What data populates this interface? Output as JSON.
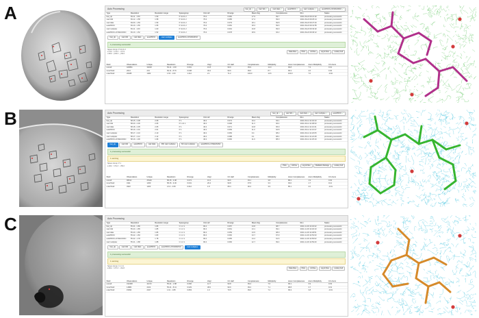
{
  "panels": [
    {
      "letter": "A",
      "title": "Auto Processing",
      "chips": [
        {
          "label": "fast_dp",
          "status": "ok"
        },
        {
          "label": "xia2 3dii",
          "status": "ok"
        },
        {
          "label": "xia2 dials",
          "status": "ok"
        },
        {
          "label": "autoPROC",
          "status": "ok"
        },
        {
          "label": "xia2 multiplex",
          "status": "ok"
        },
        {
          "label": "autoPROC+STARANISO",
          "status": "ok"
        }
      ],
      "table_header": [
        "Type",
        "Resolution",
        "Resolution range",
        "Spacegroup",
        "Unit cell",
        "Rmerge",
        "Mean I/sig",
        "Completeness",
        "Run",
        "Status"
      ],
      "table_rows": [
        [
          "fast_dp",
          "69.11 - 1.59",
          "1.59",
          "P 41 21 2",
          "79.3",
          "0.082",
          "17.9",
          "99.7",
          "2021-09-22 09:21:02",
          "processing successful"
        ],
        [
          "xia2 3dii",
          "69.12 - 1.58",
          "1.58",
          "P 41 21 2",
          "79.3",
          "0.085",
          "17.4",
          "99.9",
          "2021-09-22 09:25:14",
          "processing successful"
        ],
        [
          "xia2 dials",
          "69.09 - 1.59",
          "1.59",
          "P 41 21 2",
          "79.3",
          "0.079",
          "18.1",
          "99.8",
          "2021-09-22 09:27:40",
          "processing successful"
        ],
        [
          "autoPROC",
          "69.10 - 1.55",
          "1.55",
          "P 41 21 2",
          "79.3",
          "0.081",
          "18.3",
          "99.6",
          "2021-09-22 09:31:55",
          "processing successful"
        ],
        [
          "xia2 multiplex",
          "69.11 - 1.60",
          "1.60",
          "P 41 21 2",
          "79.3",
          "0.091",
          "16.8",
          "99.9",
          "2021-09-22 09:33:02",
          "processing successful"
        ],
        [
          "autoPROC+STARANISO",
          "69.10 - 1.52",
          "1.52",
          "P 41 21 2",
          "79.3",
          "0.078",
          "18.9",
          "94.2",
          "2021-09-22 09:36:12",
          "processing successful"
        ]
      ],
      "tabs": [
        "fast_dp",
        "xia2 3dii",
        "xia2 dials",
        "autoPROC",
        "xia2 multiplex",
        "autoPROC+STARANISO"
      ],
      "active_tab": 4,
      "success_text": "1 processing successful",
      "buttons": [
        "Data Files",
        "Plots",
        "Archive",
        "Log & Files",
        "Lookup Cell"
      ],
      "stats_header": [
        "Shell",
        "Observations",
        "Unique",
        "Resolution",
        "Rmerge",
        "I/sigI",
        "CC Half",
        "Completeness",
        "Multiplicity",
        "Anom Completeness",
        "Anom Multiplicity",
        "CC Anom"
      ],
      "stats_rows": [
        [
          "overall",
          "423891",
          "30218",
          "69.11 - 1.60",
          "0.091",
          "16.8",
          "99.9",
          "99.9",
          "14.0",
          "99.8",
          "7.3",
          "0.01"
        ],
        [
          "innerShell",
          "2014",
          "231",
          "69.11 - 8.76",
          "0.038",
          "49.2",
          "99.9",
          "99.6",
          "8.7",
          "99.3",
          "4.6",
          "0.40"
        ],
        [
          "outerShell",
          "20188",
          "1482",
          "1.63 - 1.60",
          "1.212",
          "2.1",
          "71.2",
          "100.0",
          "13.6",
          "100.0",
          "7.0",
          "-0.02"
        ]
      ]
    },
    {
      "letter": "B",
      "title": "Auto Processing",
      "chips": [
        {
          "label": "fast_dp",
          "status": "ok"
        },
        {
          "label": "xia2 3dii",
          "status": "ok"
        },
        {
          "label": "xia2 dials",
          "status": "ok"
        },
        {
          "label": "xia2 multiplex",
          "status": "ok"
        },
        {
          "label": "autoPROC",
          "status": "ok"
        }
      ],
      "table_header": [
        "Type",
        "Resolution",
        "Resolution range",
        "Spacegroup",
        "Unit cell",
        "Rmerge",
        "Mean I/sig",
        "Completeness",
        "Run",
        "Status"
      ],
      "table_rows": [
        [
          "fast_dp",
          "58.15 - 2.08",
          "2.08",
          "P 1",
          "46.2",
          "0.074",
          "10.2",
          "93.1",
          "2021-06-14 11:02:10",
          "processing successful"
        ],
        [
          "xia2 3dii",
          "58.20 - 2.06",
          "2.06",
          "P 1 21 1",
          "46.2",
          "0.068",
          "11.3",
          "96.4",
          "2021-06-14 11:08:33",
          "processing successful"
        ],
        [
          "xia2 dials",
          "58.18 - 2.05",
          "2.05",
          "P 1",
          "46.2",
          "0.071",
          "10.8",
          "95.9",
          "2021-06-14 11:10:41",
          "processing successful"
        ],
        [
          "autoPROC",
          "58.19 - 2.01",
          "2.01",
          "P 1",
          "46.2",
          "0.069",
          "11.0",
          "94.8",
          "2021-06-14 11:16:27",
          "processing successful"
        ],
        [
          "xia2 multiplex",
          "58.17 - 2.10",
          "2.10",
          "P 1",
          "46.2",
          "0.083",
          "9.4",
          "98.2",
          "2021-06-14 11:20:05",
          "processing successful"
        ],
        [
          "xia2 multiplex",
          "58.17 - 2.12",
          "2.12",
          "P 1",
          "46.2",
          "0.088",
          "9.1",
          "98.4",
          "2021-06-14 11:22:48",
          "processing successful"
        ],
        [
          "autoPROC+STARANISO",
          "58.19 - 1.96",
          "1.96",
          "P 1",
          "46.2",
          "0.066",
          "11.6",
          "88.0",
          "2021-06-14 11:25:19",
          "processing successful"
        ]
      ],
      "tabs": [
        "fast_dp",
        "xia2 3dii",
        "autoPROC",
        "xia2 dials",
        "fifth xia2 multiplex",
        "6th xia2 multiplex",
        "autoPROC+STARANISO"
      ],
      "active_tab": 0,
      "success_text": "1 processing successful",
      "warning_text": "1 warning",
      "buttons": [
        "Plots",
        "Archive",
        "Log & Files",
        "Radiation Damage",
        "Lookup Cell"
      ],
      "stats_header": [
        "Shell",
        "Observations",
        "Unique",
        "Resolution",
        "Rmerge",
        "I/sigI",
        "CC Half",
        "Completeness",
        "Multiplicity",
        "Anom Completeness",
        "Anom Multiplicity",
        "CC Anom"
      ],
      "stats_rows": [
        [
          "overall",
          "96612",
          "25140",
          "58.15 - 2.08",
          "0.074",
          "10.2",
          "99.6",
          "93.1",
          "3.8",
          "88.2",
          "1.9",
          "0.02"
        ],
        [
          "innerShell",
          "4311",
          "1290",
          "58.15 - 9.30",
          "0.031",
          "26.4",
          "99.8",
          "97.5",
          "3.3",
          "93.0",
          "1.7",
          "0.12"
        ],
        [
          "outerShell",
          "4932",
          "1263",
          "2.13 - 2.08",
          "0.612",
          "1.8",
          "68.4",
          "90.2",
          "3.9",
          "85.1",
          "2.0",
          "-0.01"
        ]
      ]
    },
    {
      "letter": "C",
      "title": "Auto Processing",
      "chips": [],
      "table_header": [
        "Type",
        "Resolution",
        "Resolution range",
        "Spacegroup",
        "Unit cell",
        "Rmerge",
        "Mean I/sig",
        "Completeness",
        "Run",
        "Status"
      ],
      "table_rows": [
        [
          "fast_dp",
          "55.41 - 1.86",
          "1.86",
          "C 1 2 1",
          "96.4",
          "0.057",
          "13.8",
          "98.7",
          "2021-11-03 14:40:22",
          "processing successful"
        ],
        [
          "xia2 3dii",
          "55.43 - 1.85",
          "1.85",
          "C 1 2 1",
          "96.4",
          "0.061",
          "13.1",
          "99.1",
          "2021-11-03 14:46:10",
          "processing successful"
        ],
        [
          "xia2 dials",
          "55.40 - 1.86",
          "1.86",
          "C 1 2 1",
          "96.4",
          "0.059",
          "13.5",
          "98.9",
          "2021-11-03 14:48:51",
          "processing successful"
        ],
        [
          "autoPROC",
          "55.42 - 1.83",
          "1.83",
          "C 1 2 1",
          "96.4",
          "0.060",
          "13.7",
          "97.9",
          "2021-11-03 14:53:33",
          "processing successful"
        ],
        [
          "autoPROC+STARANISO",
          "55.42 - 1.78",
          "1.78",
          "C 1 2 1",
          "96.4",
          "0.055",
          "14.4",
          "91.6",
          "2021-11-03 14:56:02",
          "processing successful"
        ],
        [
          "xia2 multiplex",
          "55.41 - 1.88",
          "1.88",
          "C 1 2 1",
          "96.4",
          "0.066",
          "12.7",
          "99.4",
          "2021-11-03 14:59:40",
          "processing successful"
        ]
      ],
      "tabs": [
        "fast_dp",
        "xia2 3dii",
        "xia2 dials",
        "autoPROC",
        "autoPROC+STARANISO",
        "xia2 multiplex"
      ],
      "active_tab": 5,
      "success_text": "1 processing successful",
      "warning_text": "1 warning",
      "buttons": [
        "Data Files",
        "Plots",
        "Archive",
        "Log & Files",
        "Lookup Cell"
      ],
      "stats_header": [
        "Shell",
        "Observations",
        "Unique",
        "Resolution",
        "Rmerge",
        "I/sigI",
        "CC Half",
        "Completeness",
        "Multiplicity",
        "Anom Completeness",
        "Anom Multiplicity",
        "CC Anom"
      ],
      "stats_rows": [
        [
          "overall",
          "312408",
          "41172",
          "55.41 - 1.88",
          "0.066",
          "12.7",
          "99.8",
          "99.4",
          "7.6",
          "99.1",
          "3.9",
          "0.03"
        ],
        [
          "innerShell",
          "14880",
          "2104",
          "55.41 - 8.41",
          "0.029",
          "38.0",
          "99.9",
          "99.2",
          "7.1",
          "98.8",
          "3.7",
          "0.19"
        ],
        [
          "outerShell",
          "15092",
          "2047",
          "1.91 - 1.88",
          "0.803",
          "1.9",
          "70.5",
          "99.6",
          "7.4",
          "99.3",
          "3.8",
          "-0.01"
        ]
      ]
    }
  ],
  "colors": {
    "active_tab": "#1f7fd6",
    "map_green": "#3cb83c",
    "map_cyan": "#1ab6d6",
    "stick_magenta": "#b0308a",
    "stick_green": "#36b52f",
    "stick_orange": "#d68a2a",
    "water": "#d23b3b"
  }
}
